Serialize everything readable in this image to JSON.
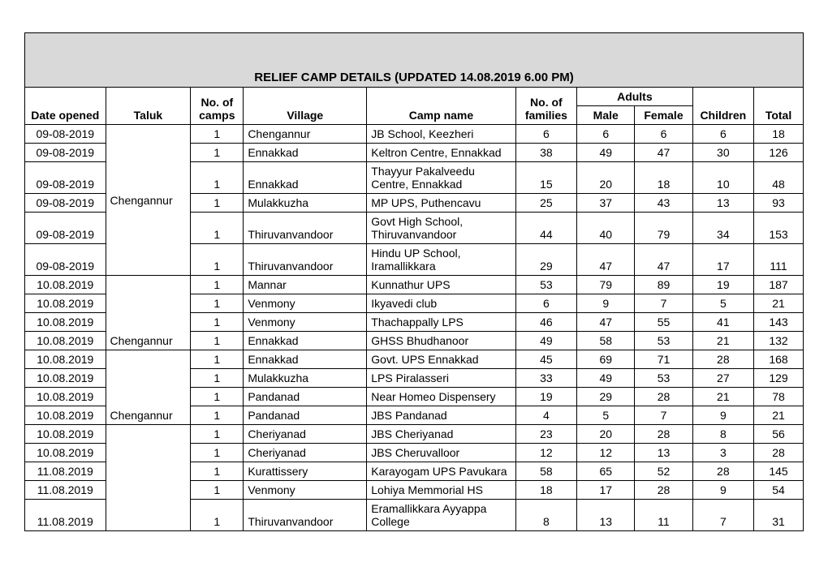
{
  "title": "RELIEF CAMP DETAILS (UPDATED 14.08.2019 6.00 PM)",
  "columns": {
    "date": "Date opened",
    "taluk": "Taluk",
    "camps": "No. of camps",
    "village": "Village",
    "campname": "Camp name",
    "families": "No. of families",
    "adults": "Adults",
    "male": "Male",
    "female": "Female",
    "children": "Children",
    "total": "Total"
  },
  "talukGroups": {
    "g1": "Chengannur",
    "g2": "Chengannur",
    "g3": "Chengannur"
  },
  "rows": [
    {
      "date": "09-08-2019",
      "camps": "1",
      "village": "Chengannur",
      "camp": "JB School, Keezheri",
      "fam": "6",
      "m": "6",
      "f": "6",
      "c": "6",
      "t": "18"
    },
    {
      "date": "09-08-2019",
      "camps": "1",
      "village": "Ennakkad",
      "camp": "Keltron Centre, Ennakkad",
      "fam": "38",
      "m": "49",
      "f": "47",
      "c": "30",
      "t": "126"
    },
    {
      "date": "09-08-2019",
      "camps": "1",
      "village": "Ennakkad",
      "camp": "Thayyur Pakalveedu Centre, Ennakkad",
      "fam": "15",
      "m": "20",
      "f": "18",
      "c": "10",
      "t": "48"
    },
    {
      "date": "09-08-2019",
      "camps": "1",
      "village": "Mulakkuzha",
      "camp": "MP UPS, Puthencavu",
      "fam": "25",
      "m": "37",
      "f": "43",
      "c": "13",
      "t": "93"
    },
    {
      "date": "09-08-2019",
      "camps": "1",
      "village": "Thiruvanvandoor",
      "camp": "Govt High School, Thiruvanvandoor",
      "fam": "44",
      "m": "40",
      "f": "79",
      "c": "34",
      "t": "153"
    },
    {
      "date": "09-08-2019",
      "camps": "1",
      "village": "Thiruvanvandoor",
      "camp": "Hindu UP School, Iramallikkara",
      "fam": "29",
      "m": "47",
      "f": "47",
      "c": "17",
      "t": "111"
    },
    {
      "date": "10.08.2019",
      "camps": "1",
      "village": "Mannar",
      "camp": "Kunnathur UPS",
      "fam": "53",
      "m": "79",
      "f": "89",
      "c": "19",
      "t": "187"
    },
    {
      "date": "10.08.2019",
      "camps": "1",
      "village": "Venmony",
      "camp": "Ikyavedi club",
      "fam": "6",
      "m": "9",
      "f": "7",
      "c": "5",
      "t": "21"
    },
    {
      "date": "10.08.2019",
      "camps": "1",
      "village": "Venmony",
      "camp": "Thachappally LPS",
      "fam": "46",
      "m": "47",
      "f": "55",
      "c": "41",
      "t": "143"
    },
    {
      "date": "10.08.2019",
      "camps": "1",
      "village": "Ennakkad",
      "camp": "GHSS Bhudhanoor",
      "fam": "49",
      "m": "58",
      "f": "53",
      "c": "21",
      "t": "132"
    },
    {
      "date": "10.08.2019",
      "camps": "1",
      "village": "Ennakkad",
      "camp": "Govt. UPS Ennakkad",
      "fam": "45",
      "m": "69",
      "f": "71",
      "c": "28",
      "t": "168"
    },
    {
      "date": "10.08.2019",
      "camps": "1",
      "village": "Mulakkuzha",
      "camp": "LPS Piralasseri",
      "fam": "33",
      "m": "49",
      "f": "53",
      "c": "27",
      "t": "129"
    },
    {
      "date": "10.08.2019",
      "camps": "1",
      "village": "Pandanad",
      "camp": "Near Homeo Dispensery",
      "fam": "19",
      "m": "29",
      "f": "28",
      "c": "21",
      "t": "78"
    },
    {
      "date": "10.08.2019",
      "camps": "1",
      "village": "Pandanad",
      "camp": "JBS Pandanad",
      "fam": "4",
      "m": "5",
      "f": "7",
      "c": "9",
      "t": "21"
    },
    {
      "date": "10.08.2019",
      "camps": "1",
      "village": "Cheriyanad",
      "camp": "JBS Cheriyanad",
      "fam": "23",
      "m": "20",
      "f": "28",
      "c": "8",
      "t": "56"
    },
    {
      "date": "10.08.2019",
      "camps": "1",
      "village": "Cheriyanad",
      "camp": "JBS Cheruvalloor",
      "fam": "12",
      "m": "12",
      "f": "13",
      "c": "3",
      "t": "28"
    },
    {
      "date": "11.08.2019",
      "camps": "1",
      "village": "Kurattissery",
      "camp": "Karayogam UPS Pavukara",
      "fam": "58",
      "m": "65",
      "f": "52",
      "c": "28",
      "t": "145"
    },
    {
      "date": "11.08.2019",
      "camps": "1",
      "village": "Venmony",
      "camp": "Lohiya Memmorial HS",
      "fam": "18",
      "m": "17",
      "f": "28",
      "c": "9",
      "t": "54"
    },
    {
      "date": "11.08.2019",
      "camps": "1",
      "village": "Thiruvanvandoor",
      "camp": "Eramallikkara Ayyappa College",
      "fam": "8",
      "m": "13",
      "f": "11",
      "c": "7",
      "t": "31"
    }
  ]
}
